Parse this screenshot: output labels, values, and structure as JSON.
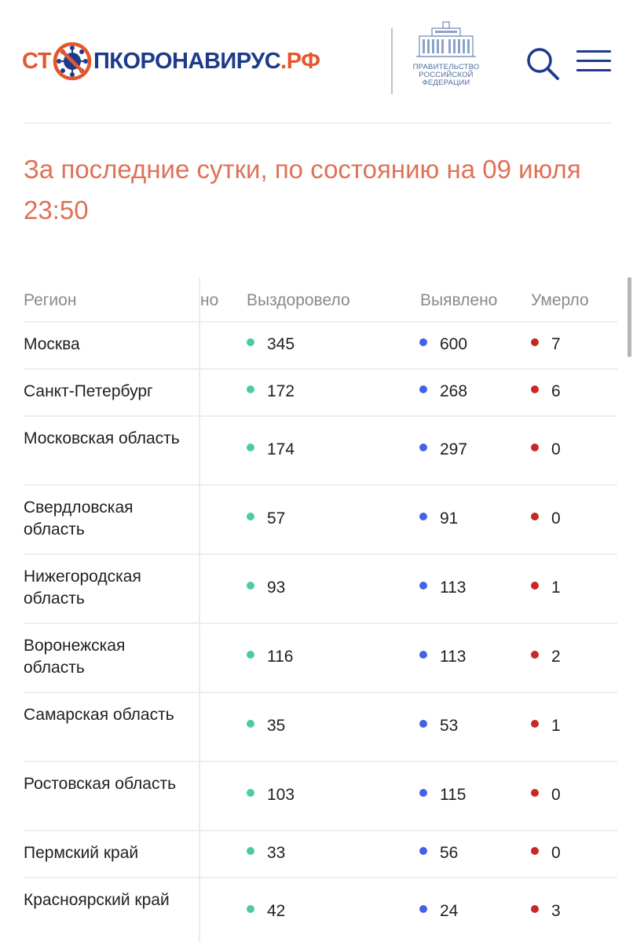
{
  "header": {
    "logo": {
      "part1": "СТ",
      "part2": "ПКОРОНАВИРУС",
      "tld": ".РФ"
    },
    "gov": {
      "line1": "ПРАВИТЕЛЬСТВО",
      "line2": "РОССИЙСКОЙ",
      "line3": "ФЕДЕРАЦИИ"
    },
    "icons": {
      "search": "search-icon",
      "menu": "menu-icon"
    }
  },
  "stats": {
    "title_line1": "За последние сутки, по состоянию на 09 июля",
    "title_line2": "23:50"
  },
  "table": {
    "columns": {
      "region": "Регион",
      "hidden": "но",
      "recovered": "Выздоровело",
      "detected": "Выявлено",
      "died": "Умерло"
    },
    "rows": [
      {
        "region": "Москва",
        "recovered": "345",
        "detected": "600",
        "died": "7"
      },
      {
        "region": "Санкт-Петербург",
        "recovered": "172",
        "detected": "268",
        "died": "6"
      },
      {
        "region": "Московская область",
        "recovered": "174",
        "detected": "297",
        "died": "0"
      },
      {
        "region": "Свердловская область",
        "recovered": "57",
        "detected": "91",
        "died": "0"
      },
      {
        "region": "Нижегородская область",
        "recovered": "93",
        "detected": "113",
        "died": "1"
      },
      {
        "region": "Воронежская область",
        "recovered": "116",
        "detected": "113",
        "died": "2"
      },
      {
        "region": "Самарская область",
        "recovered": "35",
        "detected": "53",
        "died": "1"
      },
      {
        "region": "Ростовская область",
        "recovered": "103",
        "detected": "115",
        "died": "0"
      },
      {
        "region": "Пермский край",
        "recovered": "33",
        "detected": "56",
        "died": "0"
      },
      {
        "region": "Красноярский край",
        "recovered": "42",
        "detected": "24",
        "died": "3"
      }
    ]
  },
  "colors": {
    "brand_red": "#e4572e",
    "brand_blue": "#1e3a8a",
    "title": "#de7257",
    "recovered_dot": "#4ecb9e",
    "detected_dot": "#4561e8",
    "died_dot": "#c62828"
  }
}
